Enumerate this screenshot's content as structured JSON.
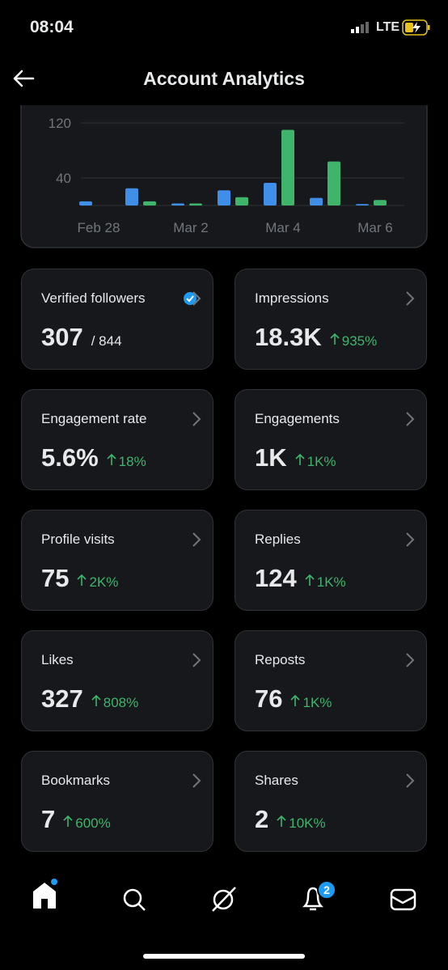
{
  "status_bar": {
    "time": "08:04",
    "network": "LTE"
  },
  "header": {
    "title": "Account Analytics"
  },
  "chart_data": {
    "type": "bar",
    "categories": [
      "Feb 28",
      null,
      "Mar 2",
      null,
      "Mar 4",
      null,
      "Mar 6"
    ],
    "series": [
      {
        "color": "#3f8fe8",
        "values": [
          6,
          25,
          3,
          22,
          33,
          11,
          2
        ]
      },
      {
        "color": "#3fb56c",
        "values": [
          0,
          6,
          3,
          12,
          110,
          64,
          8
        ]
      }
    ],
    "ylim": [
      0,
      120
    ],
    "yticks": [
      40,
      120
    ],
    "grid": true
  },
  "metrics": [
    {
      "label": "Verified followers",
      "value": "307",
      "total": "/ 844"
    },
    {
      "label": "Impressions",
      "value": "18.3K",
      "change": "935%"
    },
    {
      "label": "Engagement rate",
      "value": "5.6%",
      "change": "18%"
    },
    {
      "label": "Engagements",
      "value": "1K",
      "change": "1K%"
    },
    {
      "label": "Profile visits",
      "value": "75",
      "change": "2K%"
    },
    {
      "label": "Replies",
      "value": "124",
      "change": "1K%"
    },
    {
      "label": "Likes",
      "value": "327",
      "change": "808%"
    },
    {
      "label": "Reposts",
      "value": "76",
      "change": "1K%"
    },
    {
      "label": "Bookmarks",
      "value": "7",
      "change": "600%"
    },
    {
      "label": "Shares",
      "value": "2",
      "change": "10K%"
    }
  ],
  "nav": {
    "notification_badge": "2"
  }
}
